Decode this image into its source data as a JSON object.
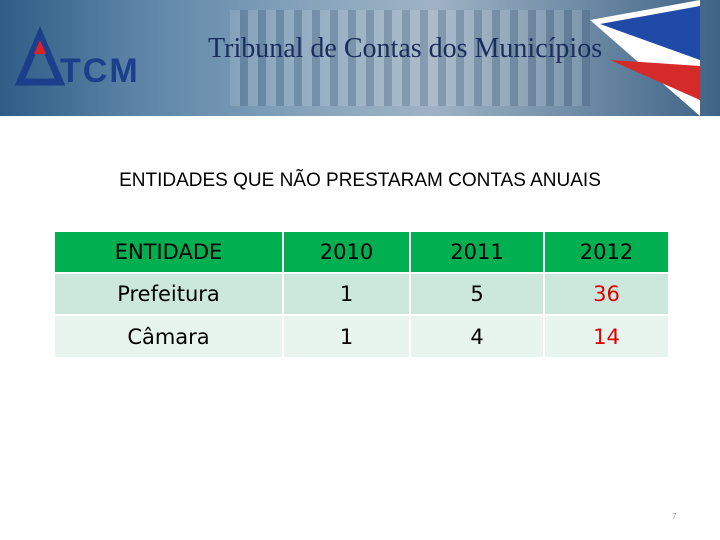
{
  "header": {
    "logo": "TCM",
    "title": "Tribunal de Contas dos Municípios"
  },
  "heading": "ENTIDADES QUE NÃO PRESTARAM CONTAS ANUAIS",
  "table": {
    "columns": [
      "ENTIDADE",
      "2010",
      "2011",
      "2012"
    ],
    "rows": [
      [
        "Prefeitura",
        1,
        5,
        36
      ],
      [
        "Câmara",
        1,
        4,
        14
      ]
    ],
    "header_color": "#00b050",
    "row_colors": [
      "#cce8dc",
      "#e8f4ee"
    ],
    "highlight_column": 3,
    "highlight_color": "#e00000"
  },
  "page_number": "7"
}
